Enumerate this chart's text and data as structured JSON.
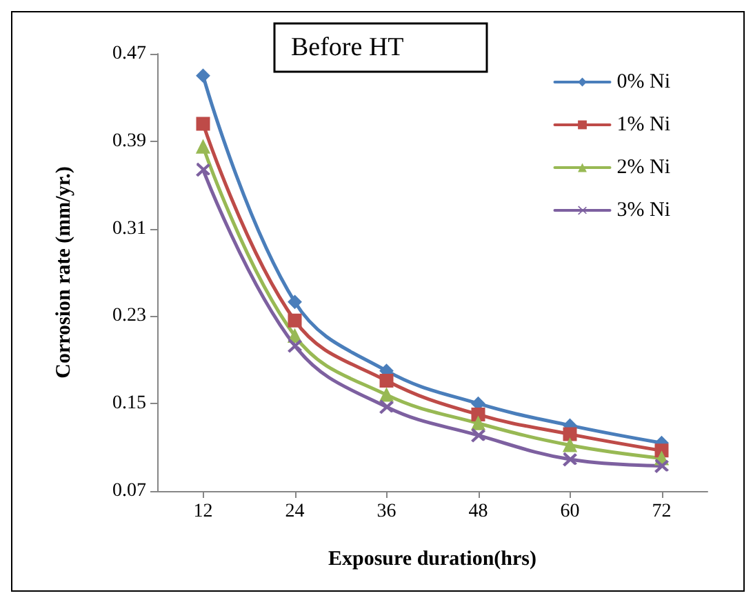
{
  "chart_data": {
    "type": "line",
    "title": "Before HT",
    "xlabel": "Exposure duration(hrs)",
    "ylabel": "Corrosion rate (mm/yr.)",
    "categories": [
      "12",
      "24",
      "36",
      "48",
      "60",
      "72"
    ],
    "series": [
      {
        "name": "0% Ni",
        "color": "#4a7ebb",
        "marker": "diamond",
        "values": [
          0.45,
          0.243,
          0.18,
          0.15,
          0.13,
          0.114
        ]
      },
      {
        "name": "1% Ni",
        "color": "#be4b48",
        "marker": "square",
        "values": [
          0.406,
          0.226,
          0.171,
          0.14,
          0.122,
          0.107
        ]
      },
      {
        "name": "2% Ni",
        "color": "#98b954",
        "marker": "triangle",
        "values": [
          0.385,
          0.212,
          0.158,
          0.132,
          0.112,
          0.1
        ]
      },
      {
        "name": "3% Ni",
        "color": "#7d60a0",
        "marker": "cross",
        "values": [
          0.364,
          0.203,
          0.147,
          0.121,
          0.099,
          0.093
        ]
      }
    ],
    "ylim": [
      0.07,
      0.47
    ],
    "yticks": [
      0.07,
      0.15,
      0.23,
      0.31,
      0.39,
      0.47
    ],
    "grid": false,
    "legend": "top right"
  }
}
